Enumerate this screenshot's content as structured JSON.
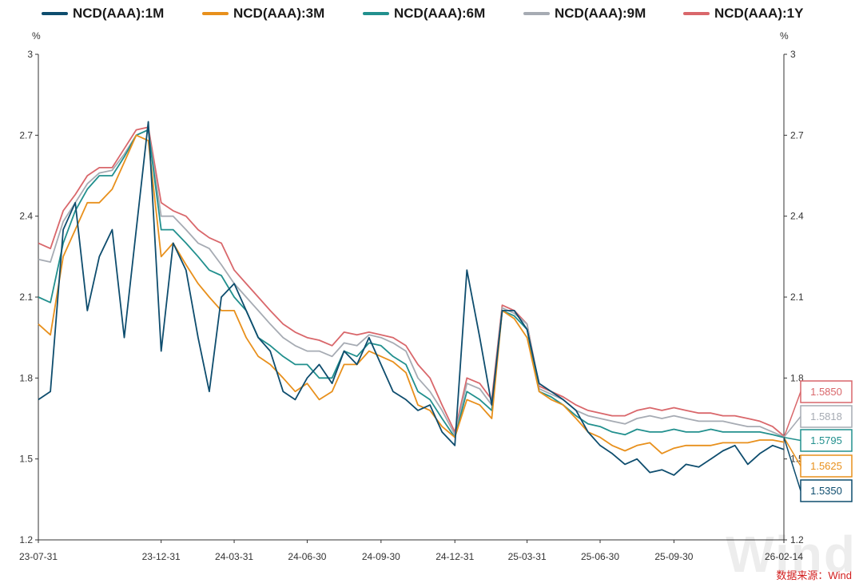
{
  "legend": [
    {
      "label": "NCD(AAA):1M",
      "color": "#0e4d6e"
    },
    {
      "label": "NCD(AAA):3M",
      "color": "#e8901c"
    },
    {
      "label": "NCD(AAA):6M",
      "color": "#22908e"
    },
    {
      "label": "NCD(AAA):9M",
      "color": "#a6abb3"
    },
    {
      "label": "NCD(AAA):1Y",
      "color": "#d9676b"
    }
  ],
  "units": {
    "left": "%",
    "right": "%"
  },
  "source": "数据来源：Wind",
  "watermark": "Wind",
  "chart_data": {
    "type": "line",
    "x_tick_labels": [
      "23-07-31",
      "23-12-31",
      "24-03-31",
      "24-06-30",
      "24-09-30",
      "24-12-31",
      "25-03-31",
      "25-06-30",
      "25-09-30",
      "26-02-14"
    ],
    "x_range": [
      "2023-07-31",
      "2026-02-14"
    ],
    "ylim": [
      1.2,
      3.0
    ],
    "y_ticks": [
      1.2,
      1.5,
      1.8,
      2.1,
      2.4,
      2.7,
      3.0
    ],
    "y_tick_labels": [
      "1.2",
      "1.5",
      "1.8",
      "2.1",
      "2.4",
      "2.7",
      "3"
    ],
    "dual_axis": true,
    "grid": false,
    "legend_position": "top",
    "x": [
      "2023-07-31",
      "2023-08-15",
      "2023-08-31",
      "2023-09-15",
      "2023-09-30",
      "2023-10-15",
      "2023-10-31",
      "2023-11-15",
      "2023-11-30",
      "2023-12-15",
      "2023-12-31",
      "2024-01-15",
      "2024-01-31",
      "2024-02-15",
      "2024-02-29",
      "2024-03-15",
      "2024-03-31",
      "2024-04-15",
      "2024-04-30",
      "2024-05-15",
      "2024-05-31",
      "2024-06-15",
      "2024-06-30",
      "2024-07-15",
      "2024-07-31",
      "2024-08-15",
      "2024-08-31",
      "2024-09-15",
      "2024-09-30",
      "2024-10-15",
      "2024-10-31",
      "2024-11-15",
      "2024-11-30",
      "2024-12-15",
      "2024-12-31",
      "2025-01-15",
      "2025-01-31",
      "2025-02-15",
      "2025-02-28",
      "2025-03-15",
      "2025-03-31",
      "2025-04-15",
      "2025-04-30",
      "2025-05-15",
      "2025-05-31",
      "2025-06-15",
      "2025-06-30",
      "2025-07-15",
      "2025-07-31",
      "2025-08-15",
      "2025-08-31",
      "2025-09-15",
      "2025-09-30",
      "2025-10-15",
      "2025-10-31",
      "2025-11-15",
      "2025-11-30",
      "2025-12-15",
      "2025-12-31",
      "2026-01-15",
      "2026-01-31",
      "2026-02-14"
    ],
    "series": [
      {
        "name": "NCD(AAA):1M",
        "values": [
          1.72,
          1.75,
          2.35,
          2.45,
          2.05,
          2.25,
          2.35,
          1.95,
          2.35,
          2.75,
          1.9,
          2.3,
          2.2,
          1.95,
          1.75,
          2.1,
          2.15,
          2.05,
          1.95,
          1.9,
          1.75,
          1.72,
          1.8,
          1.85,
          1.78,
          1.9,
          1.85,
          1.95,
          1.85,
          1.75,
          1.72,
          1.68,
          1.7,
          1.6,
          1.55,
          2.2,
          1.95,
          1.7,
          2.05,
          2.05,
          1.98,
          1.78,
          1.75,
          1.72,
          1.68,
          1.6,
          1.55,
          1.52,
          1.48,
          1.5,
          1.45,
          1.46,
          1.44,
          1.48,
          1.47,
          1.5,
          1.53,
          1.55,
          1.48,
          1.52,
          1.55,
          1.535
        ]
      },
      {
        "name": "NCD(AAA):3M",
        "values": [
          2.0,
          1.96,
          2.25,
          2.35,
          2.45,
          2.45,
          2.5,
          2.6,
          2.7,
          2.68,
          2.25,
          2.3,
          2.22,
          2.15,
          2.1,
          2.05,
          2.05,
          1.95,
          1.88,
          1.85,
          1.8,
          1.75,
          1.78,
          1.72,
          1.75,
          1.85,
          1.85,
          1.9,
          1.88,
          1.86,
          1.82,
          1.7,
          1.68,
          1.62,
          1.58,
          1.72,
          1.7,
          1.65,
          2.05,
          2.02,
          1.95,
          1.75,
          1.72,
          1.7,
          1.65,
          1.6,
          1.58,
          1.55,
          1.53,
          1.55,
          1.56,
          1.52,
          1.54,
          1.55,
          1.55,
          1.55,
          1.56,
          1.56,
          1.56,
          1.57,
          1.57,
          1.5625
        ]
      },
      {
        "name": "NCD(AAA):6M",
        "values": [
          2.1,
          2.08,
          2.3,
          2.42,
          2.5,
          2.55,
          2.55,
          2.62,
          2.7,
          2.72,
          2.35,
          2.35,
          2.3,
          2.25,
          2.2,
          2.18,
          2.1,
          2.05,
          1.95,
          1.92,
          1.88,
          1.85,
          1.85,
          1.8,
          1.8,
          1.9,
          1.88,
          1.93,
          1.92,
          1.88,
          1.85,
          1.75,
          1.72,
          1.65,
          1.58,
          1.75,
          1.72,
          1.68,
          2.05,
          2.03,
          1.98,
          1.75,
          1.73,
          1.7,
          1.66,
          1.63,
          1.62,
          1.6,
          1.59,
          1.61,
          1.6,
          1.6,
          1.61,
          1.6,
          1.6,
          1.61,
          1.6,
          1.6,
          1.6,
          1.6,
          1.59,
          1.5795
        ]
      },
      {
        "name": "NCD(AAA):9M",
        "values": [
          2.24,
          2.23,
          2.38,
          2.45,
          2.52,
          2.56,
          2.57,
          2.63,
          2.7,
          2.72,
          2.4,
          2.4,
          2.35,
          2.3,
          2.28,
          2.22,
          2.15,
          2.1,
          2.05,
          2.0,
          1.95,
          1.92,
          1.9,
          1.9,
          1.88,
          1.93,
          1.92,
          1.96,
          1.95,
          1.93,
          1.9,
          1.8,
          1.75,
          1.68,
          1.59,
          1.78,
          1.76,
          1.7,
          2.06,
          2.04,
          2.0,
          1.76,
          1.74,
          1.72,
          1.68,
          1.66,
          1.65,
          1.64,
          1.63,
          1.65,
          1.66,
          1.65,
          1.66,
          1.65,
          1.64,
          1.64,
          1.64,
          1.63,
          1.62,
          1.62,
          1.6,
          1.5818
        ]
      },
      {
        "name": "NCD(AAA):1Y",
        "values": [
          2.3,
          2.28,
          2.42,
          2.48,
          2.55,
          2.58,
          2.58,
          2.65,
          2.72,
          2.73,
          2.45,
          2.42,
          2.4,
          2.35,
          2.32,
          2.3,
          2.2,
          2.15,
          2.1,
          2.05,
          2.0,
          1.97,
          1.95,
          1.94,
          1.92,
          1.97,
          1.96,
          1.97,
          1.96,
          1.95,
          1.92,
          1.85,
          1.8,
          1.7,
          1.6,
          1.8,
          1.78,
          1.72,
          2.07,
          2.05,
          2.0,
          1.77,
          1.75,
          1.73,
          1.7,
          1.68,
          1.67,
          1.66,
          1.66,
          1.68,
          1.69,
          1.68,
          1.69,
          1.68,
          1.67,
          1.67,
          1.66,
          1.66,
          1.65,
          1.64,
          1.62,
          1.585
        ]
      }
    ],
    "end_labels": [
      "1.5850",
      "1.5818",
      "1.5795",
      "1.5625",
      "1.5350"
    ]
  }
}
